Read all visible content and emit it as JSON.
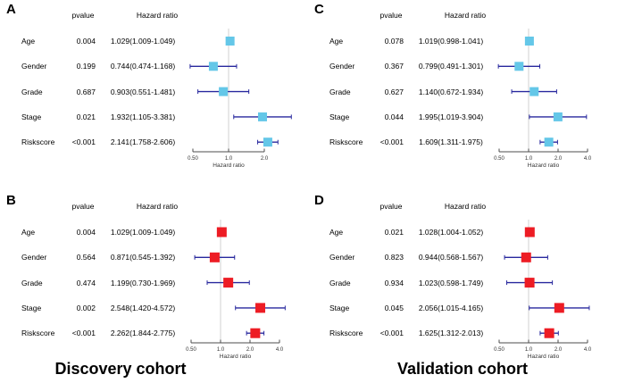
{
  "figure": {
    "cohort_labels": [
      "Discovery cohort",
      "Validation cohort"
    ]
  },
  "colors": {
    "marker_blue": "#64C7E8",
    "marker_red": "#ED1C24",
    "error_bar": "#28289E",
    "ref_line": "#D0D0D0",
    "axis": "#4D4D4D",
    "text": "#000000"
  },
  "chart_data": [
    {
      "type": "forest",
      "panel_letter": "A",
      "position": "top-left",
      "marker_color_key": "marker_blue",
      "col_headers": [
        "pvalue",
        "Hazard ratio"
      ],
      "xlabel": "Hazard ratio",
      "x_scale": "log2",
      "ref_line": 1.0,
      "axis_tick_values": [
        0.5,
        1.0,
        2.0
      ],
      "axis_tick_labels": [
        "0.50",
        "1.0",
        "2.0"
      ],
      "rows": [
        {
          "label": "Age",
          "pvalue": "0.004",
          "hr_text": "1.029(1.009-1.049)",
          "hr": 1.029,
          "low": 1.009,
          "high": 1.049
        },
        {
          "label": "Gender",
          "pvalue": "0.199",
          "hr_text": "0.744(0.474-1.168)",
          "hr": 0.744,
          "low": 0.474,
          "high": 1.168
        },
        {
          "label": "Grade",
          "pvalue": "0.687",
          "hr_text": "0.903(0.551-1.481)",
          "hr": 0.903,
          "low": 0.551,
          "high": 1.481
        },
        {
          "label": "Stage",
          "pvalue": "0.021",
          "hr_text": "1.932(1.105-3.381)",
          "hr": 1.932,
          "low": 1.105,
          "high": 3.381
        },
        {
          "label": "Riskscore",
          "pvalue": "<0.001",
          "hr_text": "2.141(1.758-2.606)",
          "hr": 2.141,
          "low": 1.758,
          "high": 2.606
        }
      ]
    },
    {
      "type": "forest",
      "panel_letter": "C",
      "position": "top-right",
      "marker_color_key": "marker_blue",
      "col_headers": [
        "pvalue",
        "Hazard ratio"
      ],
      "xlabel": "Hazard ratio",
      "x_scale": "log2",
      "ref_line": 1.0,
      "axis_tick_values": [
        0.5,
        1.0,
        2.0,
        4.0
      ],
      "axis_tick_labels": [
        "0.50",
        "1.0",
        "2.0",
        "4.0"
      ],
      "rows": [
        {
          "label": "Age",
          "pvalue": "0.078",
          "hr_text": "1.019(0.998-1.041)",
          "hr": 1.019,
          "low": 0.998,
          "high": 1.041
        },
        {
          "label": "Gender",
          "pvalue": "0.367",
          "hr_text": "0.799(0.491-1.301)",
          "hr": 0.799,
          "low": 0.491,
          "high": 1.301
        },
        {
          "label": "Grade",
          "pvalue": "0.627",
          "hr_text": "1.140(0.672-1.934)",
          "hr": 1.14,
          "low": 0.672,
          "high": 1.934
        },
        {
          "label": "Stage",
          "pvalue": "0.044",
          "hr_text": "1.995(1.019-3.904)",
          "hr": 1.995,
          "low": 1.019,
          "high": 3.904
        },
        {
          "label": "Riskscore",
          "pvalue": "<0.001",
          "hr_text": "1.609(1.311-1.975)",
          "hr": 1.609,
          "low": 1.311,
          "high": 1.975
        }
      ]
    },
    {
      "type": "forest",
      "panel_letter": "B",
      "position": "bottom-left",
      "marker_color_key": "marker_red",
      "col_headers": [
        "pvalue",
        "Hazard ratio"
      ],
      "xlabel": "Hazard ratio",
      "x_scale": "log2",
      "ref_line": 1.0,
      "axis_tick_values": [
        0.5,
        1.0,
        2.0,
        4.0
      ],
      "axis_tick_labels": [
        "0.50",
        "1.0",
        "2.0",
        "4.0"
      ],
      "rows": [
        {
          "label": "Age",
          "pvalue": "0.004",
          "hr_text": "1.029(1.009-1.049)",
          "hr": 1.029,
          "low": 1.009,
          "high": 1.049
        },
        {
          "label": "Gender",
          "pvalue": "0.564",
          "hr_text": "0.871(0.545-1.392)",
          "hr": 0.871,
          "low": 0.545,
          "high": 1.392
        },
        {
          "label": "Grade",
          "pvalue": "0.474",
          "hr_text": "1.199(0.730-1.969)",
          "hr": 1.199,
          "low": 0.73,
          "high": 1.969
        },
        {
          "label": "Stage",
          "pvalue": "0.002",
          "hr_text": "2.548(1.420-4.572)",
          "hr": 2.548,
          "low": 1.42,
          "high": 4.572
        },
        {
          "label": "Riskscore",
          "pvalue": "<0.001",
          "hr_text": "2.262(1.844-2.775)",
          "hr": 2.262,
          "low": 1.844,
          "high": 2.775
        }
      ]
    },
    {
      "type": "forest",
      "panel_letter": "D",
      "position": "bottom-right",
      "marker_color_key": "marker_red",
      "col_headers": [
        "pvalue",
        "Hazard ratio"
      ],
      "xlabel": "Hazard ratio",
      "x_scale": "log2",
      "ref_line": 1.0,
      "axis_tick_values": [
        0.5,
        1.0,
        2.0,
        4.0
      ],
      "axis_tick_labels": [
        "0.50",
        "1.0",
        "2.0",
        "4.0"
      ],
      "rows": [
        {
          "label": "Age",
          "pvalue": "0.021",
          "hr_text": "1.028(1.004-1.052)",
          "hr": 1.028,
          "low": 1.004,
          "high": 1.052
        },
        {
          "label": "Gender",
          "pvalue": "0.823",
          "hr_text": "0.944(0.568-1.567)",
          "hr": 0.944,
          "low": 0.568,
          "high": 1.567
        },
        {
          "label": "Grade",
          "pvalue": "0.934",
          "hr_text": "1.023(0.598-1.749)",
          "hr": 1.023,
          "low": 0.598,
          "high": 1.749
        },
        {
          "label": "Stage",
          "pvalue": "0.045",
          "hr_text": "2.056(1.015-4.165)",
          "hr": 2.056,
          "low": 1.015,
          "high": 4.165
        },
        {
          "label": "Riskscore",
          "pvalue": "<0.001",
          "hr_text": "1.625(1.312-2.013)",
          "hr": 1.625,
          "low": 1.312,
          "high": 2.013
        }
      ]
    }
  ]
}
